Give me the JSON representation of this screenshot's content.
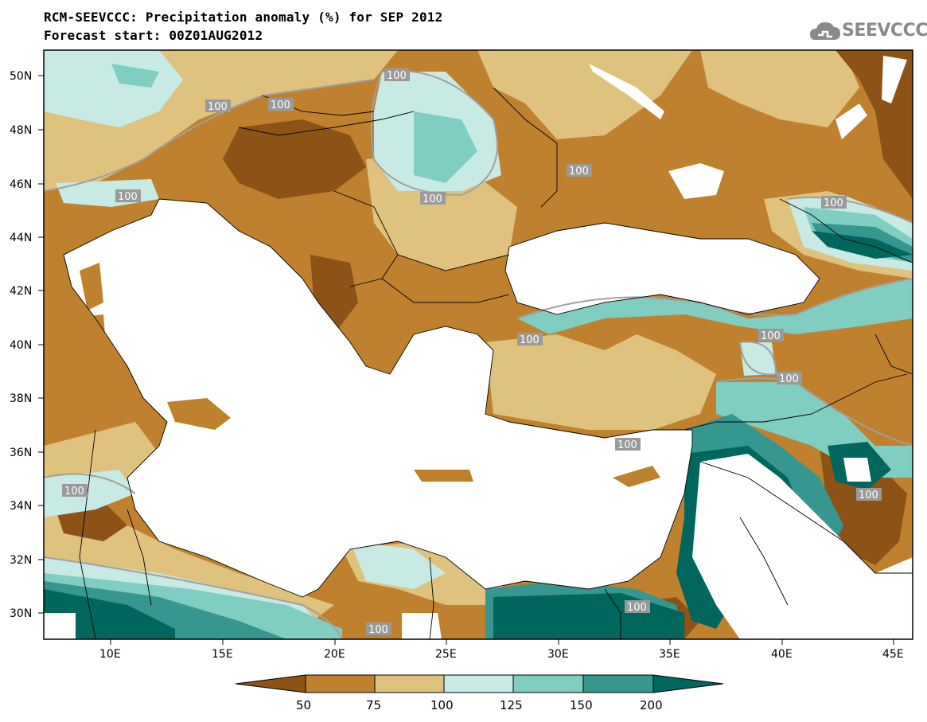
{
  "title": {
    "line1": "RCM-SEEVCCC: Precipitation anomaly (%) for SEP 2012",
    "line2": "Forecast start: 00Z01AUG2012"
  },
  "logo": {
    "text": "SEEVCCC",
    "icon": "cloud-logo-icon"
  },
  "map": {
    "lat_labels": [
      "50N",
      "48N",
      "46N",
      "44N",
      "42N",
      "40N",
      "38N",
      "36N",
      "34N",
      "32N",
      "30N"
    ],
    "lon_labels": [
      "10E",
      "15E",
      "20E",
      "25E",
      "30E",
      "35E",
      "40E",
      "45E"
    ],
    "contour_labels": [
      "100",
      "100",
      "100",
      "100",
      "100",
      "100",
      "100",
      "100",
      "100",
      "100",
      "100",
      "100",
      "100",
      "100",
      "100"
    ]
  },
  "colors": {
    "lt50": "#8c5216",
    "c50_75": "#bf812d",
    "c75_100": "#dfc27d",
    "c100_125": "#c7eae5",
    "c125_150": "#80cdc1",
    "c150_200": "#35978f",
    "gt200": "#01665e",
    "land_missing": "#ffffff",
    "contour": "#a0a0a0"
  },
  "colorbar": {
    "labels": [
      "50",
      "75",
      "100",
      "125",
      "150",
      "200"
    ]
  }
}
